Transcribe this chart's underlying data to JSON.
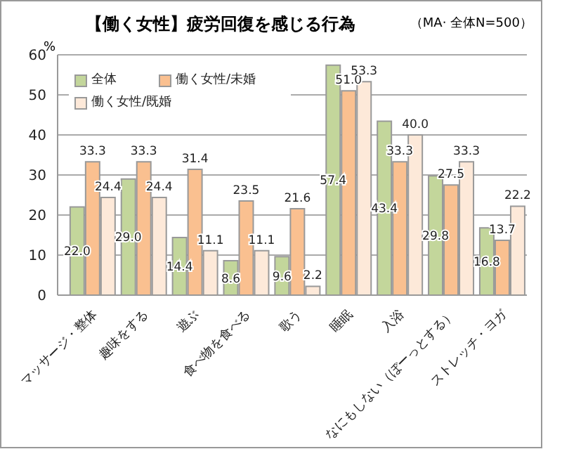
{
  "chart_data": {
    "type": "bar",
    "title": "【働く女性】疲労回復を感じる行為",
    "annotations": [
      "（MA· 全体N=500）"
    ],
    "ylabel": "%",
    "categories": [
      "マッサージ・整体",
      "趣味をする",
      "遊ぶ",
      "食べ物を食べる",
      "歌う",
      "睡眠",
      "入浴",
      "なにもしない（ぼーっとする）",
      "ストレッチ・ヨガ"
    ],
    "series": [
      {
        "name": "全体",
        "color": "#c3d69b",
        "values": [
          22.0,
          29.0,
          14.4,
          8.6,
          9.6,
          57.4,
          43.4,
          29.8,
          16.8
        ],
        "value_labels": [
          "22.0",
          "29.0",
          "14.4",
          "8.6",
          "9.6",
          "57.4",
          "43.4",
          "29.8",
          "16.8"
        ]
      },
      {
        "name": "働く女性/未婚",
        "color": "#fac090",
        "values": [
          33.3,
          33.3,
          31.4,
          23.5,
          21.6,
          51.0,
          33.3,
          27.5,
          13.7
        ],
        "value_labels": [
          "33.3",
          "33.3",
          "31.4",
          "23.5",
          "21.6",
          "51.0",
          "33.3",
          "27.5",
          "13.7"
        ]
      },
      {
        "name": "働く女性/既婚",
        "color": "#fde9d9",
        "values": [
          24.4,
          24.4,
          11.1,
          11.1,
          2.2,
          53.3,
          40.0,
          33.3,
          22.2
        ],
        "value_labels": [
          "24.4",
          "24.4",
          "11.1",
          "11.1",
          "2.2",
          "53.3",
          "40.0",
          "33.3",
          "22.2"
        ]
      }
    ],
    "ylim": [
      0,
      60
    ],
    "yticks": [
      0,
      10,
      20,
      30,
      40,
      50,
      60
    ],
    "grid": "y",
    "legend": "top left"
  }
}
